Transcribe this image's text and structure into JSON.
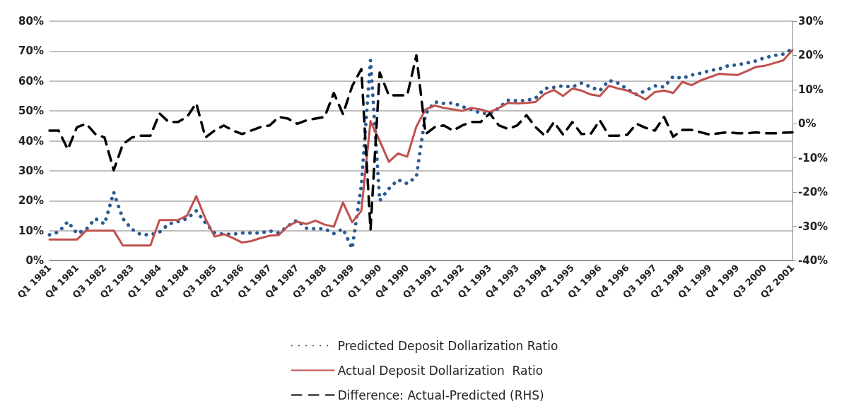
{
  "chart_data": {
    "type": "line",
    "categories": [
      "Q1 1981",
      null,
      null,
      "Q4 1981",
      null,
      null,
      "Q3 1982",
      null,
      null,
      "Q2 1983",
      null,
      null,
      "Q1 1984",
      null,
      null,
      "Q4 1984",
      null,
      null,
      "Q3 1985",
      null,
      null,
      "Q2 1986",
      null,
      null,
      "Q1 1987",
      null,
      null,
      "Q4 1987",
      null,
      null,
      "Q3 1988",
      null,
      null,
      "Q2 1989",
      null,
      null,
      "Q1 1990",
      null,
      null,
      "Q4 1990",
      null,
      null,
      "Q3 1991",
      null,
      null,
      "Q2 1992",
      null,
      null,
      "Q1 1993",
      null,
      null,
      "Q4 1993",
      null,
      null,
      "Q3 1994",
      null,
      null,
      "Q2 1995",
      null,
      null,
      "Q1 1996",
      null,
      null,
      "Q4 1996",
      null,
      null,
      "Q3 1997",
      null,
      null,
      "Q2 1998",
      null,
      null,
      "Q1 1999",
      null,
      null,
      "Q4 1999",
      null,
      null,
      "Q3 2000",
      null,
      null,
      "Q2 2001"
    ],
    "series": [
      {
        "name": "Predicted Deposit Dollarization Ratio",
        "color": "#2a5a94",
        "line_style": "dotted",
        "values": [
          8.6,
          9.5,
          13,
          9,
          10.4,
          14,
          12.2,
          22.8,
          14,
          10.4,
          8.6,
          8.6,
          9.5,
          12.2,
          13,
          14,
          16.6,
          12.6,
          9.2,
          8.8,
          8.8,
          9.2,
          9.2,
          9.2,
          9.9,
          9.2,
          11.5,
          13.5,
          10.8,
          10.6,
          10.6,
          9,
          10.6,
          4,
          25,
          67,
          20,
          24,
          27,
          25.7,
          28,
          49,
          53,
          52.5,
          52.7,
          51.4,
          50.5,
          49.3,
          49,
          51,
          53.6,
          53.4,
          53.5,
          54.3,
          57.5,
          57.9,
          58.4,
          58,
          59.3,
          58,
          56.8,
          60.2,
          59.3,
          57.3,
          55.5,
          56.8,
          58.4,
          58,
          61.5,
          60.9,
          62,
          62.6,
          63.5,
          64,
          65.1,
          65.4,
          66,
          66.7,
          67.8,
          68.5,
          69,
          70.8
        ]
      },
      {
        "name": "Actual Deposit Dollarization  Ratio",
        "color": "#c0504d",
        "line_style": "solid",
        "values": [
          7,
          7,
          7,
          7,
          10,
          10,
          10,
          10,
          5,
          5,
          5,
          5,
          13.5,
          13.5,
          13.5,
          15,
          21.5,
          14,
          8,
          8.8,
          7.5,
          6,
          6.5,
          7.5,
          8.3,
          8.5,
          11.5,
          13,
          12.2,
          13.3,
          12,
          11.3,
          19.4,
          12.8,
          16.6,
          46.6,
          40,
          33,
          35.8,
          34.7,
          44.8,
          50.5,
          51.8,
          51,
          50.5,
          50,
          51,
          50.5,
          49.6,
          51,
          52.7,
          52.5,
          52.7,
          53,
          55.7,
          57,
          55,
          57.5,
          56.8,
          55.5,
          55,
          58.4,
          57.5,
          56.8,
          55.5,
          53.8,
          56.3,
          56.8,
          56,
          59.7,
          58.6,
          60.2,
          61.3,
          62.4,
          62.2,
          62,
          63.3,
          64.7,
          65.1,
          66,
          66.9,
          70.3
        ]
      },
      {
        "name": "Difference: Actual-Predicted (RHS)",
        "color": "#000000",
        "line_style": "dashed",
        "axis": "y2",
        "values": [
          -2,
          -2,
          -7.5,
          -1,
          0,
          -3,
          -4,
          -13.6,
          -6,
          -4,
          -3.5,
          -3.5,
          3,
          0.5,
          0.5,
          2,
          6,
          -4,
          -2,
          -0.5,
          -2,
          -3,
          -2,
          -1,
          -0.5,
          2,
          1.5,
          0,
          1,
          1.5,
          2,
          9,
          2.8,
          11,
          16,
          -31,
          15,
          8.3,
          8.3,
          8.3,
          20,
          -3,
          -1,
          -0.5,
          -2,
          -0.5,
          0.5,
          0.5,
          3,
          -0.5,
          -1.5,
          -0.5,
          2.5,
          -1,
          -3.5,
          0.5,
          -3.2,
          0.5,
          -3,
          -3,
          1,
          -3.5,
          -3.5,
          -3.2,
          0,
          -1.2,
          -2,
          2,
          -3.8,
          -1.8,
          -1.8,
          -2.5,
          -3.2,
          -2.8,
          -2.5,
          -2.8,
          -2.8,
          -2.5,
          -2.8,
          -2.8,
          -2.6,
          -2.5
        ]
      }
    ],
    "ylim": [
      0,
      80
    ],
    "yticks": [
      {
        "value": 0,
        "label": "0%"
      },
      {
        "value": 10,
        "label": "10%"
      },
      {
        "value": 20,
        "label": "20%"
      },
      {
        "value": 30,
        "label": "30%"
      },
      {
        "value": 40,
        "label": "40%"
      },
      {
        "value": 50,
        "label": "50%"
      },
      {
        "value": 60,
        "label": "60%"
      },
      {
        "value": 70,
        "label": "70%"
      },
      {
        "value": 80,
        "label": "80%"
      }
    ],
    "y2lim": [
      -40,
      30
    ],
    "y2ticks": [
      {
        "value": -40,
        "label": "-40%"
      },
      {
        "value": -30,
        "label": "-30%"
      },
      {
        "value": -20,
        "label": "-20%"
      },
      {
        "value": -10,
        "label": "-10%"
      },
      {
        "value": 0,
        "label": "0%"
      },
      {
        "value": 10,
        "label": "10%"
      },
      {
        "value": 20,
        "label": "20%"
      },
      {
        "value": 30,
        "label": "30%"
      }
    ],
    "grid": "y",
    "legend": "bottom",
    "marker": "none"
  }
}
